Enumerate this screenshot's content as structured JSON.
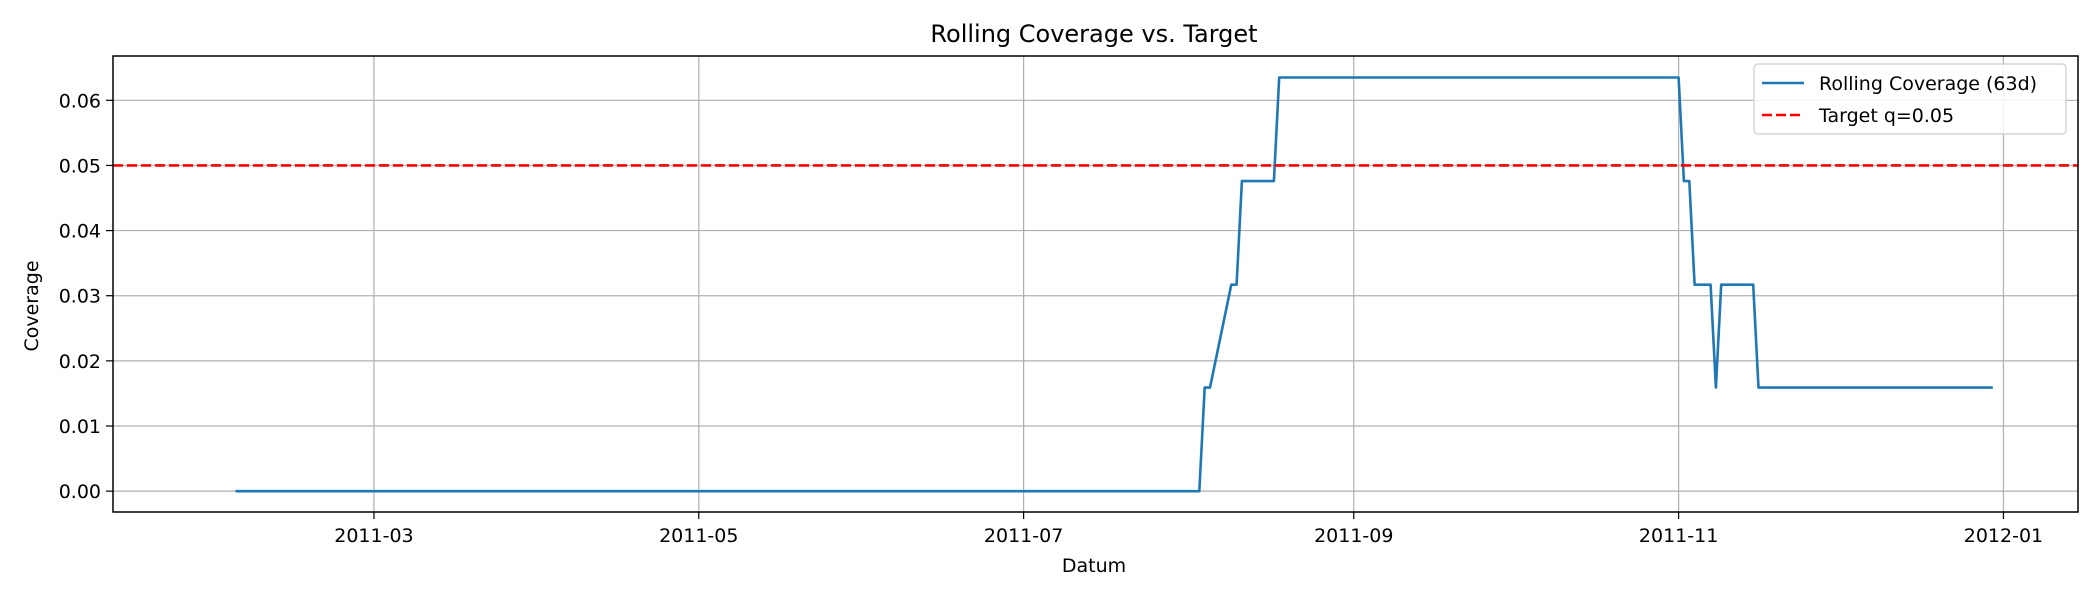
{
  "chart_data": {
    "type": "line",
    "title": "Rolling Coverage vs. Target",
    "xlabel": "Datum",
    "ylabel": "Coverage",
    "xlim": [
      "2011-01-11",
      "2012-01-15"
    ],
    "ylim": [
      -0.0032,
      0.0668
    ],
    "x_ticks": [
      "2011-03-01",
      "2011-05-01",
      "2011-07-01",
      "2011-09-01",
      "2011-11-01",
      "2012-01-01"
    ],
    "x_tick_labels": [
      "2011-03",
      "2011-05",
      "2011-07",
      "2011-09",
      "2011-11",
      "2012-01"
    ],
    "y_ticks": [
      0.0,
      0.01,
      0.02,
      0.03,
      0.04,
      0.05,
      0.06
    ],
    "y_tick_labels": [
      "0.00",
      "0.01",
      "0.02",
      "0.03",
      "0.04",
      "0.05",
      "0.06"
    ],
    "grid": true,
    "legend_position": "top-right",
    "series": [
      {
        "name": "Rolling Coverage (63d)",
        "color": "#1f77b4",
        "style": "solid",
        "points": [
          [
            "2011-02-03",
            0.0
          ],
          [
            "2011-08-03",
            0.0
          ],
          [
            "2011-08-04",
            0.0159
          ],
          [
            "2011-08-05",
            0.0159
          ],
          [
            "2011-08-09",
            0.0317
          ],
          [
            "2011-08-10",
            0.0317
          ],
          [
            "2011-08-11",
            0.0476
          ],
          [
            "2011-08-17",
            0.0476
          ],
          [
            "2011-08-18",
            0.0635
          ],
          [
            "2011-11-01",
            0.0635
          ],
          [
            "2011-11-02",
            0.0476
          ],
          [
            "2011-11-03",
            0.0476
          ],
          [
            "2011-11-04",
            0.0317
          ],
          [
            "2011-11-07",
            0.0317
          ],
          [
            "2011-11-08",
            0.0159
          ],
          [
            "2011-11-09",
            0.0317
          ],
          [
            "2011-11-15",
            0.0317
          ],
          [
            "2011-11-16",
            0.0159
          ],
          [
            "2011-12-30",
            0.0159
          ]
        ]
      },
      {
        "name": "Target q=0.05",
        "color": "#ff0000",
        "style": "dashed",
        "y": 0.05
      }
    ]
  }
}
